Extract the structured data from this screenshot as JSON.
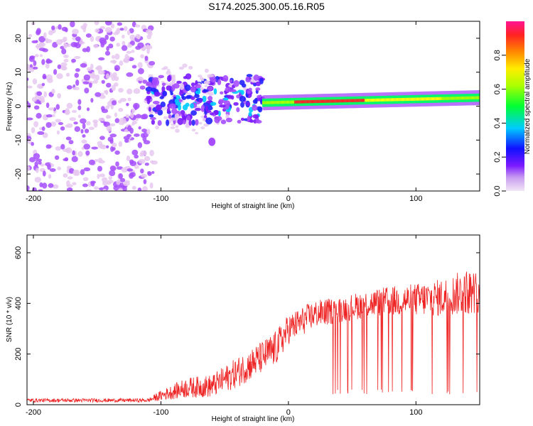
{
  "title": "S174.2025.300.05.16.R05",
  "colors": {
    "snr_line": "#ee2222",
    "background": "#ffffff",
    "colormap": [
      "#e6c8f0",
      "#a64dff",
      "#7a1aff",
      "#2222ff",
      "#00ccff",
      "#00ff66",
      "#aaff00",
      "#ffff00",
      "#ff8800",
      "#ff2222",
      "#ff1493"
    ]
  },
  "chart_data": [
    {
      "type": "heatmap",
      "name": "spectrogram",
      "xlabel": "Height of straight line (km)",
      "ylabel": "Frequency (Hz)",
      "xlim": [
        -205,
        150
      ],
      "ylim": [
        -25,
        25
      ],
      "xticks": [
        -200,
        -100,
        0,
        100
      ],
      "yticks": [
        -20,
        -10,
        0,
        10,
        20
      ],
      "colorbar": {
        "label": "Normalized spectral amplitude",
        "range": [
          0,
          1
        ],
        "ticks": [
          "0.0",
          "0.2",
          "0.4",
          "0.6",
          "0.8"
        ]
      },
      "segments": [
        {
          "region": "noise",
          "x": [
            -205,
            -105
          ],
          "freq": [
            -25,
            25
          ],
          "amplitude": 0.05
        },
        {
          "region": "sparse",
          "x": [
            -105,
            -60
          ],
          "freq": [
            -8,
            12
          ],
          "amplitude": 0.1
        },
        {
          "region": "onset",
          "x": [
            -110,
            -20
          ],
          "freq": [
            -5,
            9
          ],
          "amplitude": 0.25
        },
        {
          "region": "ridge",
          "x": [
            -20,
            150
          ],
          "freq_start": 1,
          "freq_end": 2.5,
          "amplitude": 0.85
        }
      ]
    },
    {
      "type": "line",
      "name": "snr",
      "xlabel": "Height of straight line (km)",
      "ylabel": "SNR (10 * v/v)",
      "xlim": [
        -205,
        150
      ],
      "ylim": [
        0,
        670
      ],
      "xticks": [
        -200,
        -100,
        0,
        100
      ],
      "yticks": [
        0,
        200,
        400,
        600
      ],
      "envelope": [
        {
          "x": -205,
          "base": 15,
          "spread": 15
        },
        {
          "x": -110,
          "base": 15,
          "spread": 15
        },
        {
          "x": -100,
          "base": 30,
          "spread": 40
        },
        {
          "x": -80,
          "base": 55,
          "spread": 80
        },
        {
          "x": -60,
          "base": 60,
          "spread": 90
        },
        {
          "x": -40,
          "base": 110,
          "spread": 120
        },
        {
          "x": -20,
          "base": 170,
          "spread": 130
        },
        {
          "x": -10,
          "base": 200,
          "spread": 140
        },
        {
          "x": 0,
          "base": 280,
          "spread": 120
        },
        {
          "x": 20,
          "base": 340,
          "spread": 110
        },
        {
          "x": 40,
          "base": 360,
          "spread": 100
        },
        {
          "x": 60,
          "base": 380,
          "spread": 110
        },
        {
          "x": 80,
          "base": 390,
          "spread": 120
        },
        {
          "x": 100,
          "base": 395,
          "spread": 130
        },
        {
          "x": 120,
          "base": 400,
          "spread": 150
        },
        {
          "x": 140,
          "base": 420,
          "spread": 180
        },
        {
          "x": 150,
          "base": 420,
          "spread": 160
        }
      ],
      "dropouts": {
        "x_start": 30,
        "x_end": 150,
        "min_value": 40
      }
    }
  ]
}
